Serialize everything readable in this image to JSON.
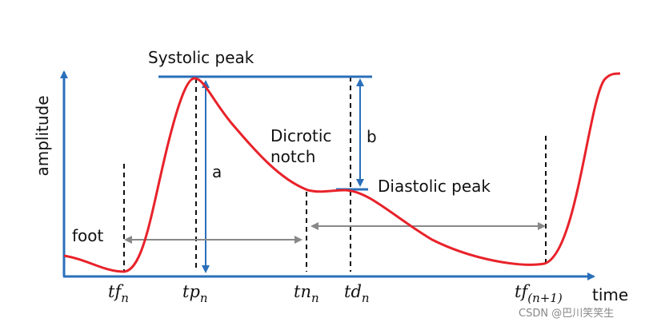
{
  "axes": {
    "y_label": "amplitude",
    "x_label": "time"
  },
  "annotations": {
    "systolic_peak": "Systolic peak",
    "dicrotic_notch": [
      "Dicrotic",
      "notch"
    ],
    "diastolic_peak": "Diastolic peak",
    "a": "a",
    "b": "b",
    "foot": "foot"
  },
  "ticks": [
    {
      "base": "tf",
      "sub": "n"
    },
    {
      "base": "tp",
      "sub": "n"
    },
    {
      "base": "tn",
      "sub": "n"
    },
    {
      "base": "td",
      "sub": "n"
    },
    {
      "base": "tf",
      "sub": "(n+1)"
    }
  ],
  "watermark": "CSDN @巴川笑笑生"
}
